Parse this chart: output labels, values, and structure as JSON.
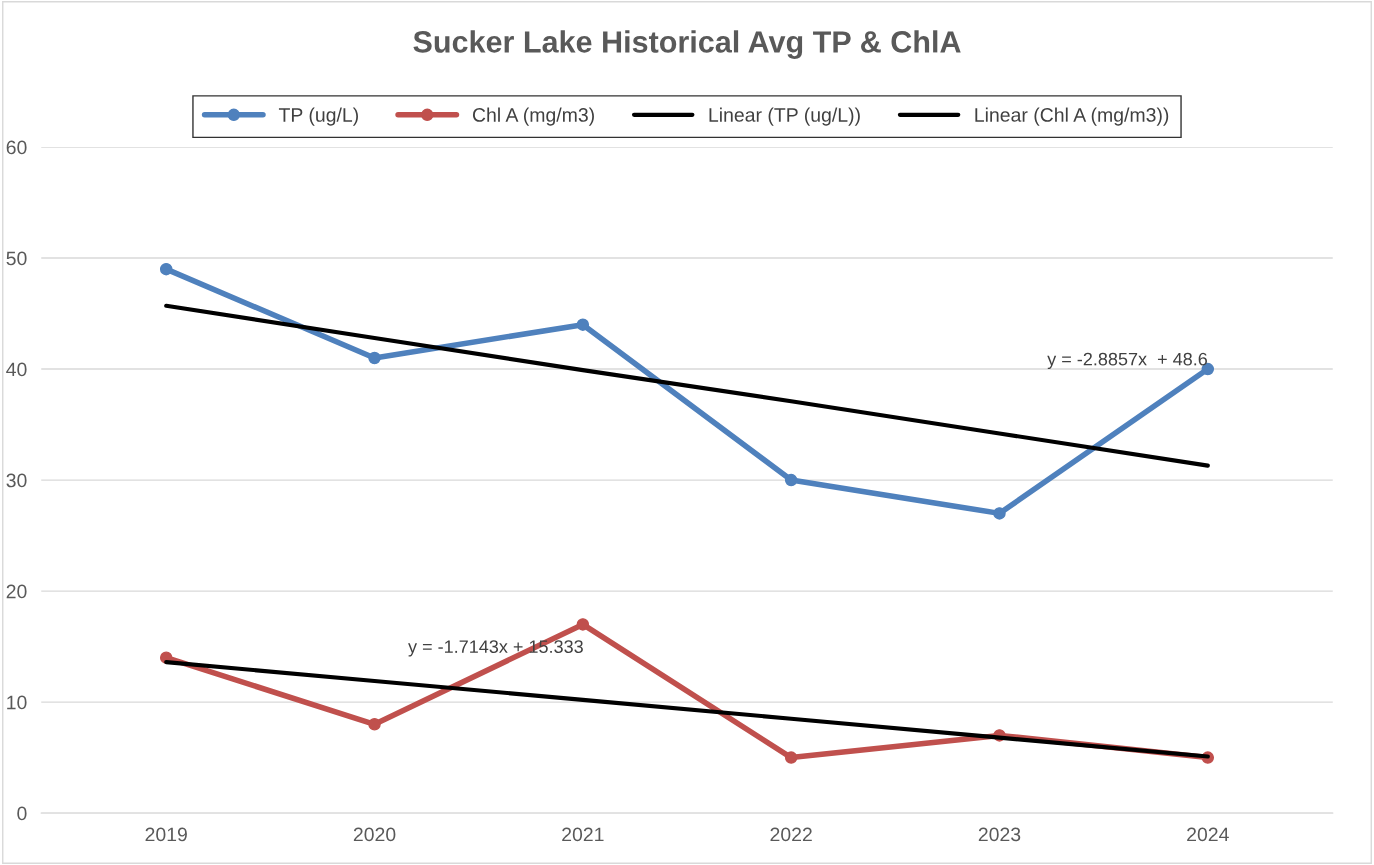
{
  "chart_data": {
    "type": "line",
    "title": "Sucker Lake Historical Avg TP & ChlA",
    "categories": [
      "2019",
      "2020",
      "2021",
      "2022",
      "2023",
      "2024"
    ],
    "series": [
      {
        "name": "TP (ug/L)",
        "color": "#4f81bd",
        "values": [
          49,
          41,
          44,
          30,
          27,
          40
        ],
        "marker": "circle"
      },
      {
        "name": "Chl A (mg/m3)",
        "color": "#c0504d",
        "values": [
          14,
          8,
          17,
          5,
          7,
          5
        ],
        "marker": "circle"
      },
      {
        "name": "Linear (TP (ug/L))",
        "color": "#000000",
        "values": [
          45.7,
          42.8,
          39.9,
          37.1,
          34.2,
          31.3
        ],
        "marker": "none"
      },
      {
        "name": "Linear (Chl A (mg/m3))",
        "color": "#000000",
        "values": [
          13.6,
          11.9,
          10.2,
          8.5,
          6.8,
          5.1
        ],
        "marker": "none"
      }
    ],
    "annotations": [
      {
        "text": "y = -2.8857x  + 48.6",
        "x": "2024",
        "y": 40
      },
      "y = -1.7143x + 15.333"
    ],
    "ylim": [
      0,
      60
    ],
    "yticks": [
      0,
      10,
      20,
      30,
      40,
      50,
      60
    ],
    "grid": "y",
    "legend": "top",
    "line_style": "solid"
  }
}
